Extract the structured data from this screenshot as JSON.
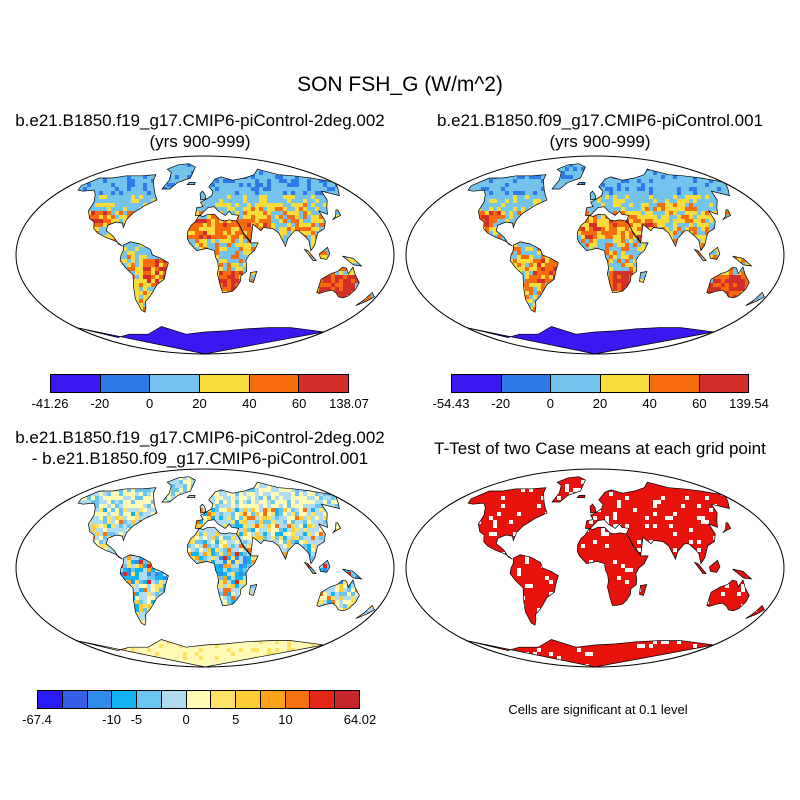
{
  "figure": {
    "title": "SON FSH_G (W/m^2)"
  },
  "panels": [
    {
      "id": "p1",
      "title_line1": "b.e21.B1850.f19_g17.CMIP6-piControl-2deg.002",
      "title_line2": "(yrs 900-999)",
      "kind": "climatology"
    },
    {
      "id": "p2",
      "title_line1": "b.e21.B1850.f09_g17.CMIP6-piControl.001",
      "title_line2": "(yrs 900-999)",
      "kind": "climatology"
    },
    {
      "id": "p3",
      "title_line1": "b.e21.B1850.f19_g17.CMIP6-piControl-2deg.002",
      "title_line2": "- b.e21.B1850.f09_g17.CMIP6-piControl.001",
      "kind": "difference"
    },
    {
      "id": "p4",
      "title_line1": "T-Test of two Case means at each grid point",
      "kind": "significance"
    }
  ],
  "colorbars": [
    {
      "id": "cb1",
      "colors": [
        "#3a18f0",
        "#2d7ae8",
        "#73c3ed",
        "#f8dc3b",
        "#f56b0e",
        "#d22e2a"
      ],
      "labels": [
        "-41.26",
        "-20",
        "0",
        "20",
        "40",
        "60",
        "138.07"
      ]
    },
    {
      "id": "cb2",
      "colors": [
        "#3a18f0",
        "#2d7ae8",
        "#73c3ed",
        "#f8dc3b",
        "#f56b0e",
        "#d22e2a"
      ],
      "labels": [
        "-54.43",
        "-20",
        "0",
        "20",
        "40",
        "60",
        "139.54"
      ]
    },
    {
      "id": "cb3",
      "colors": [
        "#2a1bf5",
        "#3560e6",
        "#2f8ce8",
        "#13b2f0",
        "#6ac5ef",
        "#b0dcf2",
        "#fffbb6",
        "#fde266",
        "#fdcc36",
        "#fca31a",
        "#f8700f",
        "#e42716",
        "#c7242c"
      ],
      "labels": [
        "-67.4",
        "-10",
        "-5",
        "0",
        "5",
        "10",
        "64.02"
      ],
      "label_box_index": [
        0,
        3,
        4,
        6,
        8,
        10,
        13
      ]
    }
  ],
  "significance_note": "Cells are significant at 0.1 level",
  "map_colors": {
    "ocean": "#ffffff",
    "significant": "#e8120d",
    "antarctica_abs": "#3a18f0",
    "difference_antarctica": "#fffbb6"
  }
}
